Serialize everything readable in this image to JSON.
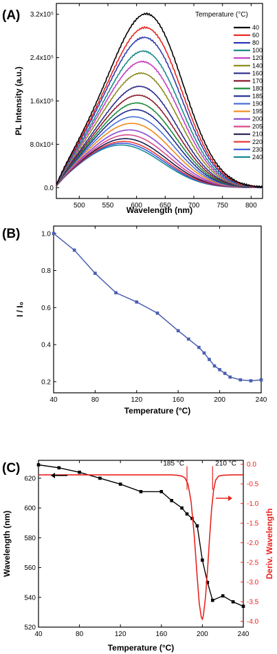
{
  "chart_data": [
    {
      "type": "line",
      "panel_label": "(A)",
      "xlabel": "Wavelength (nm)",
      "ylabel": "PL Intensity (a.u.)",
      "xlim": [
        460,
        820
      ],
      "ylim": [
        -20000,
        340000
      ],
      "x_ticks": [
        500,
        550,
        600,
        650,
        700,
        750,
        800
      ],
      "y_ticks": [
        {
          "value": 0,
          "label": "0.0"
        },
        {
          "value": 80000,
          "label": "8.0x10⁴"
        },
        {
          "value": 160000,
          "label": "1.6x10⁵"
        },
        {
          "value": 240000,
          "label": "2.4x10⁵"
        },
        {
          "value": 320000,
          "label": "3.2x10⁵"
        }
      ],
      "legend_title": "Temperature (°C)",
      "legend_position": "top-right",
      "series": [
        {
          "name": "40",
          "color": "#000000",
          "peak": 313000
        },
        {
          "name": "60",
          "color": "#e8231e",
          "peak": 287000
        },
        {
          "name": "80",
          "color": "#2d3bb0",
          "peak": 268000
        },
        {
          "name": "100",
          "color": "#1a8a8a",
          "peak": 242000
        },
        {
          "name": "120",
          "color": "#c43bc0",
          "peak": 222000
        },
        {
          "name": "140",
          "color": "#8b8b1e",
          "peak": 200000
        },
        {
          "name": "160",
          "color": "#2a2a8c",
          "peak": 175000
        },
        {
          "name": "170",
          "color": "#8b1a2a",
          "peak": 158000
        },
        {
          "name": "180",
          "color": "#1a8a3a",
          "peak": 143000
        },
        {
          "name": "185",
          "color": "#1a2a8c",
          "peak": 130000
        },
        {
          "name": "190",
          "color": "#4a6fd8",
          "peak": 116000
        },
        {
          "name": "195",
          "color": "#f08a1a",
          "peak": 103000
        },
        {
          "name": "200",
          "color": "#8a4ad0",
          "peak": 90000
        },
        {
          "name": "205",
          "color": "#d84a8a",
          "peak": 80000
        },
        {
          "name": "210",
          "color": "#1a1a4a",
          "peak": 72000
        },
        {
          "name": "220",
          "color": "#e83a3a",
          "peak": 66000
        },
        {
          "name": "230",
          "color": "#3a5ad8",
          "peak": 62000
        },
        {
          "name": "240",
          "color": "#1a8a9a",
          "peak": 58000
        }
      ]
    },
    {
      "type": "line",
      "panel_label": "(B)",
      "xlabel": "Temperature (°C)",
      "ylabel": "I / I₀",
      "xlim": [
        40,
        240
      ],
      "ylim": [
        0.14,
        1.04
      ],
      "x_ticks": [
        40,
        80,
        120,
        160,
        200,
        240
      ],
      "y_ticks": [
        {
          "value": 0.2,
          "label": "0.2"
        },
        {
          "value": 0.4,
          "label": "0.4"
        },
        {
          "value": 0.6,
          "label": "0.6"
        },
        {
          "value": 0.8,
          "label": "0.8"
        },
        {
          "value": 1.0,
          "label": "1.0"
        }
      ],
      "color": "#4a5fb0",
      "x": [
        40,
        60,
        80,
        100,
        120,
        140,
        160,
        170,
        180,
        185,
        190,
        195,
        200,
        205,
        210,
        220,
        230,
        240
      ],
      "y": [
        1.0,
        0.91,
        0.785,
        0.68,
        0.63,
        0.57,
        0.475,
        0.43,
        0.385,
        0.355,
        0.32,
        0.285,
        0.265,
        0.245,
        0.225,
        0.21,
        0.205,
        0.21
      ]
    },
    {
      "type": "line",
      "panel_label": "(C)",
      "xlabel": "Temperature (°C)",
      "ylabel": "Wavelength (nm)",
      "y2label": "Deriv. Wavelength",
      "xlim": [
        40,
        240
      ],
      "ylim": [
        520,
        632
      ],
      "y2lim": [
        -4.15,
        0.1
      ],
      "x_ticks": [
        40,
        80,
        120,
        160,
        200,
        240
      ],
      "y_ticks": [
        {
          "value": 520,
          "label": "520"
        },
        {
          "value": 540,
          "label": "540"
        },
        {
          "value": 560,
          "label": "560"
        },
        {
          "value": 580,
          "label": "580"
        },
        {
          "value": 600,
          "label": "600"
        },
        {
          "value": 620,
          "label": "620"
        }
      ],
      "y2_ticks": [
        {
          "value": 0.0,
          "label": "0.0"
        },
        {
          "value": -0.5,
          "label": "-0.5"
        },
        {
          "value": -1.0,
          "label": "-1.0"
        },
        {
          "value": -1.5,
          "label": "-1.5"
        },
        {
          "value": -2.0,
          "label": "-2.0"
        },
        {
          "value": -2.5,
          "label": "-2.5"
        },
        {
          "value": -3.0,
          "label": "-3.0"
        },
        {
          "value": -3.5,
          "label": "-3.5"
        },
        {
          "value": -4.0,
          "label": "-4.0"
        }
      ],
      "series": [
        {
          "axis": "left",
          "color": "#000000",
          "x": [
            40,
            60,
            80,
            100,
            120,
            140,
            160,
            170,
            180,
            185,
            190,
            195,
            200,
            205,
            210,
            220,
            230,
            240
          ],
          "y": [
            629,
            627,
            624,
            620,
            616,
            611,
            611,
            605,
            600,
            596,
            593,
            588,
            565,
            550,
            538,
            541,
            537,
            534
          ]
        },
        {
          "axis": "right",
          "color": "#e8231e",
          "x": [
            40,
            150,
            160,
            170,
            175,
            180,
            183,
            186,
            189,
            192,
            195,
            197,
            199,
            200,
            201,
            203,
            205,
            207,
            209,
            211,
            213,
            216,
            220,
            230,
            240
          ],
          "y": [
            -0.27,
            -0.27,
            -0.27,
            -0.27,
            -0.28,
            -0.3,
            -0.35,
            -0.5,
            -0.95,
            -1.8,
            -2.9,
            -3.55,
            -3.9,
            -3.95,
            -3.85,
            -3.4,
            -2.7,
            -1.9,
            -1.15,
            -0.65,
            -0.4,
            -0.3,
            -0.28,
            -0.27,
            -0.27
          ]
        }
      ],
      "annotations": [
        {
          "text": "185 °C",
          "x": 185
        },
        {
          "text": "210 °C",
          "x": 210
        }
      ]
    }
  ]
}
